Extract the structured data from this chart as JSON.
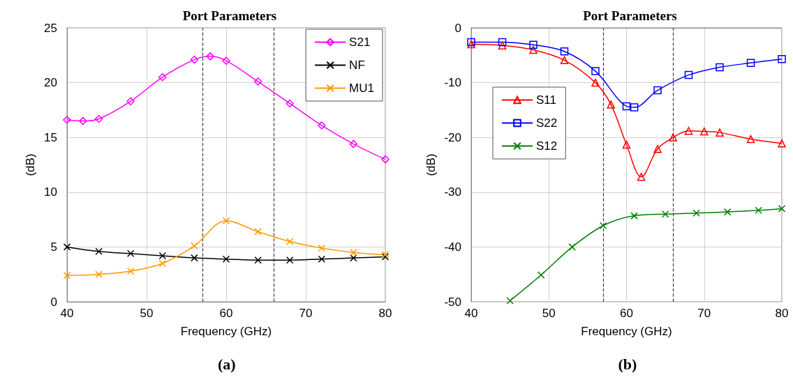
{
  "chart_data": [
    {
      "type": "line",
      "title": "Port Parameters",
      "xlabel": "Frequency (GHz)",
      "ylabel": "(dB)",
      "annotations": [
        "(a)"
      ],
      "xlim": [
        40,
        80
      ],
      "xticks": [
        40,
        50,
        60,
        70,
        80
      ],
      "ylim": [
        0,
        25
      ],
      "yticks": [
        0,
        5,
        10,
        15,
        20,
        25
      ],
      "grid": true,
      "legend": "top right",
      "line_style": "solid",
      "series": [
        {
          "name": "S21",
          "color": "#ff00ff",
          "marker": "diamond",
          "x": [
            40,
            42,
            44,
            48,
            52,
            56,
            58,
            60,
            64,
            68,
            72,
            76,
            80
          ],
          "values": [
            16.6,
            16.5,
            16.7,
            18.3,
            20.5,
            22.1,
            22.4,
            22.0,
            20.1,
            18.1,
            16.1,
            14.4,
            13.0
          ]
        },
        {
          "name": "NF",
          "color": "#000000",
          "marker": "cross",
          "x": [
            40,
            44,
            48,
            52,
            56,
            60,
            64,
            68,
            72,
            76,
            80
          ],
          "values": [
            5.0,
            4.6,
            4.4,
            4.2,
            4.0,
            3.9,
            3.8,
            3.8,
            3.9,
            4.0,
            4.1
          ]
        },
        {
          "name": "MU1",
          "color": "#ff9900",
          "marker": "cross",
          "x": [
            40,
            44,
            48,
            52,
            56,
            60,
            64,
            68,
            72,
            76,
            80
          ],
          "values": [
            2.4,
            2.5,
            2.8,
            3.5,
            5.1,
            7.4,
            6.4,
            5.5,
            4.9,
            4.5,
            4.3
          ]
        }
      ],
      "ref_lines": [
        {
          "axis": "x",
          "value": 57,
          "color": "#404040",
          "line_style": "dashed"
        },
        {
          "axis": "x",
          "value": 66,
          "color": "#404040",
          "line_style": "dashed"
        }
      ]
    },
    {
      "type": "line",
      "title": "Port Parameters",
      "xlabel": "Frequency (GHz)",
      "ylabel": "(dB)",
      "annotations": [
        "(b)"
      ],
      "xlim": [
        40,
        80
      ],
      "xticks": [
        40,
        50,
        60,
        70,
        80
      ],
      "ylim": [
        -50,
        0
      ],
      "yticks": [
        -50,
        -40,
        -30,
        -20,
        -10,
        0
      ],
      "grid": true,
      "legend": "left",
      "line_style": "solid",
      "series": [
        {
          "name": "S11",
          "color": "#ff0000",
          "marker": "triangle",
          "x": [
            40,
            44,
            48,
            52,
            56,
            58,
            60,
            61.9,
            64,
            66,
            68,
            70,
            72,
            76,
            80
          ],
          "values": [
            -3.0,
            -3.2,
            -4.0,
            -5.9,
            -10.0,
            -14.0,
            -21.3,
            -27.2,
            -22.1,
            -20.0,
            -18.8,
            -18.9,
            -19.1,
            -20.3,
            -21.1
          ]
        },
        {
          "name": "S22",
          "color": "#0000ff",
          "marker": "square",
          "x": [
            40,
            44,
            48,
            52,
            56,
            60,
            61,
            64,
            68,
            72,
            76,
            80
          ],
          "values": [
            -2.6,
            -2.6,
            -3.1,
            -4.3,
            -7.9,
            -14.3,
            -14.5,
            -11.4,
            -8.6,
            -7.2,
            -6.4,
            -5.7
          ]
        },
        {
          "name": "S12",
          "color": "#008000",
          "marker": "cross",
          "x": [
            45,
            49,
            53,
            57,
            61,
            65,
            69,
            73,
            77,
            80
          ],
          "values": [
            -49.8,
            -45.1,
            -40.0,
            -36.1,
            -34.3,
            -34.0,
            -33.8,
            -33.6,
            -33.3,
            -33.0
          ]
        }
      ],
      "ref_lines": [
        {
          "axis": "x",
          "value": 57,
          "color": "#404040",
          "line_style": "dashed"
        },
        {
          "axis": "x",
          "value": 66,
          "color": "#404040",
          "line_style": "dashed"
        }
      ]
    }
  ]
}
